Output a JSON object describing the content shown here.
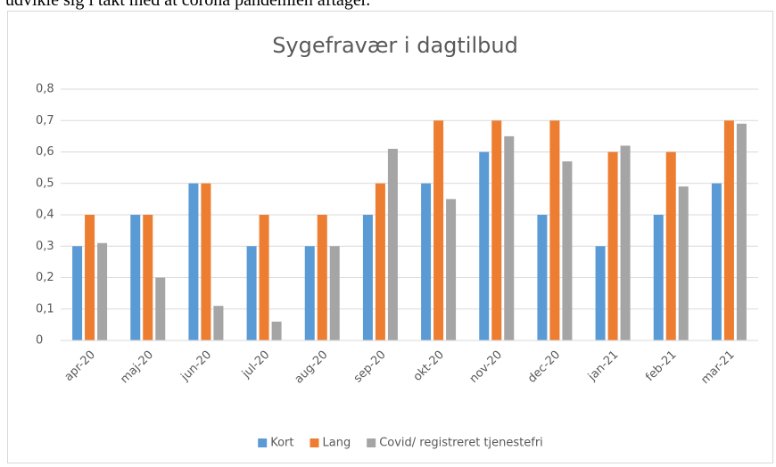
{
  "top_text": "udvikle sig i takt med at corona pandemien aftager.",
  "chart_data": {
    "type": "bar",
    "title": "Sygefravær i dagtilbud",
    "categories": [
      "apr-20",
      "maj-20",
      "jun-20",
      "jul-20",
      "aug-20",
      "sep-20",
      "okt-20",
      "nov-20",
      "dec-20",
      "jan-21",
      "feb-21",
      "mar-21"
    ],
    "series": [
      {
        "name": "Kort",
        "color": "#5b9bd5",
        "values": [
          0.3,
          0.4,
          0.5,
          0.3,
          0.3,
          0.4,
          0.5,
          0.6,
          0.4,
          0.3,
          0.4,
          0.5
        ]
      },
      {
        "name": "Lang",
        "color": "#ed7d31",
        "values": [
          0.4,
          0.4,
          0.5,
          0.4,
          0.4,
          0.5,
          0.7,
          0.7,
          0.7,
          0.6,
          0.6,
          0.7
        ]
      },
      {
        "name": "Covid/ registreret tjenestefri",
        "color": "#a5a5a5",
        "values": [
          0.31,
          0.2,
          0.11,
          0.06,
          0.3,
          0.61,
          0.45,
          0.65,
          0.57,
          0.62,
          0.49,
          0.69
        ]
      }
    ],
    "ylim": [
      0,
      0.8
    ],
    "yticks": [
      0,
      {
        "value": 0.1,
        "label": "0,1"
      },
      {
        "value": 0.2,
        "label": "0,2"
      },
      {
        "value": 0.3,
        "label": "0,3"
      },
      {
        "value": 0.4,
        "label": "0,4"
      },
      {
        "value": 0.5,
        "label": "0,5"
      },
      {
        "value": 0.6,
        "label": "0,6"
      },
      {
        "value": 0.7,
        "label": "0,7"
      },
      {
        "value": 0.8,
        "label": "0,8"
      }
    ],
    "grid": true,
    "legend": "bottom"
  }
}
